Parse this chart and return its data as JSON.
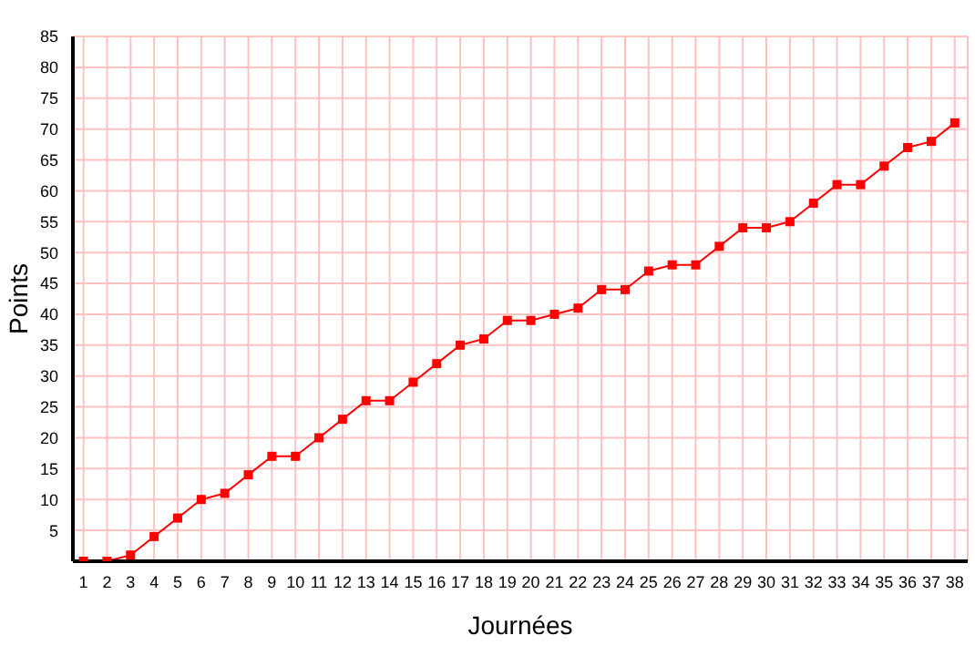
{
  "chart_data": {
    "type": "line",
    "xlabel": "Journées",
    "ylabel": "Points",
    "x": [
      1,
      2,
      3,
      4,
      5,
      6,
      7,
      8,
      9,
      10,
      11,
      12,
      13,
      14,
      15,
      16,
      17,
      18,
      19,
      20,
      21,
      22,
      23,
      24,
      25,
      26,
      27,
      28,
      29,
      30,
      31,
      32,
      33,
      34,
      35,
      36,
      37,
      38
    ],
    "series": [
      {
        "color": "#ff0000",
        "values": [
          0,
          0,
          1,
          4,
          7,
          10,
          11,
          14,
          17,
          17,
          20,
          23,
          26,
          26,
          29,
          32,
          35,
          36,
          39,
          39,
          40,
          41,
          44,
          44,
          47,
          48,
          48,
          51,
          54,
          54,
          55,
          58,
          61,
          61,
          64,
          67,
          68,
          71
        ]
      }
    ],
    "xlim": [
      0.55,
      38.55
    ],
    "xticks": [
      1,
      2,
      3,
      4,
      5,
      6,
      7,
      8,
      9,
      10,
      11,
      12,
      13,
      14,
      15,
      16,
      17,
      18,
      19,
      20,
      21,
      22,
      23,
      24,
      25,
      26,
      27,
      28,
      29,
      30,
      31,
      32,
      33,
      34,
      35,
      36,
      37,
      38
    ],
    "ylim": [
      0,
      85
    ],
    "yticks": [
      {
        "value": 0,
        "label": null
      },
      5,
      10,
      15,
      20,
      25,
      30,
      35,
      40,
      45,
      50,
      55,
      60,
      65,
      70,
      75,
      80,
      85
    ],
    "grid": true,
    "marker": "square",
    "line_style": "solid"
  }
}
